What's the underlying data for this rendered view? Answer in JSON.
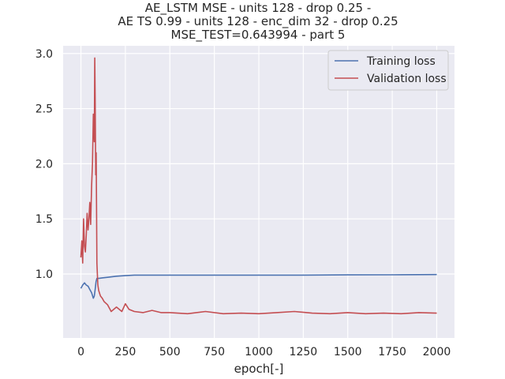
{
  "chart_data": {
    "type": "line",
    "title_lines": [
      "AE_LSTM MSE - units 128 - drop 0.25 -",
      "AE TS 0.99 - units 128 - enc_dim 32 - drop 0.25",
      "MSE_TEST=0.643994 - part 5"
    ],
    "xlabel": "epoch[-]",
    "ylabel": "",
    "xlim": [
      -100,
      2100
    ],
    "ylim": [
      0.42,
      3.07
    ],
    "xticks": [
      0,
      250,
      500,
      750,
      1000,
      1250,
      1500,
      1750,
      2000
    ],
    "yticks": [
      1.0,
      1.5,
      2.0,
      2.5,
      3.0
    ],
    "xtick_labels": [
      "0",
      "250",
      "500",
      "750",
      "1000",
      "1250",
      "1500",
      "1750",
      "2000"
    ],
    "ytick_labels": [
      "1.0",
      "1.5",
      "2.0",
      "2.5",
      "3.0"
    ],
    "grid": true,
    "legend_position": "top-right",
    "series": [
      {
        "name": "Training loss",
        "color": "#4c72b0",
        "x": [
          0,
          10,
          20,
          30,
          40,
          50,
          60,
          70,
          75,
          80,
          85,
          90,
          100,
          120,
          150,
          200,
          250,
          300,
          400,
          500,
          750,
          1000,
          1250,
          1500,
          1750,
          2000
        ],
        "y": [
          0.87,
          0.9,
          0.92,
          0.9,
          0.89,
          0.86,
          0.83,
          0.78,
          0.8,
          0.86,
          0.93,
          0.96,
          0.96,
          0.965,
          0.97,
          0.98,
          0.985,
          0.99,
          0.99,
          0.99,
          0.99,
          0.99,
          0.99,
          0.992,
          0.993,
          0.995
        ]
      },
      {
        "name": "Validation loss",
        "color": "#c44e52",
        "x": [
          0,
          5,
          10,
          15,
          20,
          25,
          30,
          35,
          40,
          45,
          50,
          55,
          60,
          65,
          70,
          75,
          78,
          80,
          83,
          86,
          90,
          95,
          100,
          110,
          120,
          130,
          150,
          170,
          200,
          230,
          250,
          270,
          300,
          350,
          400,
          450,
          500,
          600,
          700,
          800,
          900,
          1000,
          1100,
          1200,
          1300,
          1400,
          1500,
          1600,
          1700,
          1800,
          1900,
          2000
        ],
        "y": [
          1.15,
          1.3,
          1.1,
          1.5,
          1.25,
          1.2,
          1.35,
          1.55,
          1.4,
          1.5,
          1.65,
          1.45,
          1.8,
          2.0,
          2.45,
          2.2,
          2.96,
          2.6,
          1.9,
          2.1,
          1.1,
          0.9,
          0.85,
          0.8,
          0.78,
          0.75,
          0.72,
          0.66,
          0.7,
          0.66,
          0.73,
          0.68,
          0.66,
          0.65,
          0.67,
          0.65,
          0.65,
          0.64,
          0.66,
          0.64,
          0.645,
          0.64,
          0.65,
          0.66,
          0.645,
          0.64,
          0.65,
          0.64,
          0.645,
          0.64,
          0.65,
          0.645
        ]
      }
    ]
  }
}
